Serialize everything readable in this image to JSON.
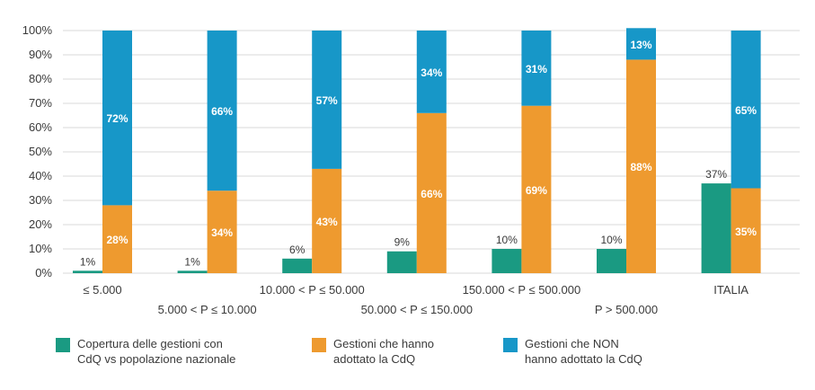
{
  "chart_data": {
    "type": "bar",
    "stacked_series": [
      "Gestioni che hanno adottato la CdQ",
      "Gestioni che NON hanno adottato la CdQ"
    ],
    "categories": [
      "≤ 5.000",
      "5.000 < P ≤ 10.000",
      "10.000 < P ≤ 50.000",
      "50.000 < P ≤ 150.000",
      "150.000 < P ≤ 500.000",
      "P > 500.000",
      "ITALIA"
    ],
    "series": [
      {
        "name": "Copertura delle gestioni con CdQ vs popolazione nazionale",
        "color": "#1a9a82",
        "values": [
          1,
          1,
          6,
          9,
          10,
          10,
          37
        ],
        "labels": [
          "1%",
          "1%",
          "6%",
          "9%",
          "10%",
          "10%",
          "37%"
        ]
      },
      {
        "name": "Gestioni che hanno adottato la CdQ",
        "color": "#ee9a2f",
        "values": [
          28,
          34,
          43,
          66,
          69,
          88,
          35
        ],
        "labels": [
          "28%",
          "34%",
          "43%",
          "66%",
          "69%",
          "88%",
          "35%"
        ]
      },
      {
        "name": "Gestioni che NON hanno adottato la CdQ",
        "color": "#1797c8",
        "values": [
          72,
          66,
          57,
          34,
          31,
          13,
          65
        ],
        "labels": [
          "72%",
          "66%",
          "57%",
          "34%",
          "31%",
          "13%",
          "65%"
        ]
      }
    ],
    "ylim": [
      0,
      100
    ],
    "yticks": [
      "0%",
      "10%",
      "20%",
      "30%",
      "40%",
      "50%",
      "60%",
      "70%",
      "80%",
      "90%",
      "100%"
    ],
    "grid": true,
    "legend_position": "bottom"
  },
  "legend": {
    "items": [
      {
        "lines": [
          "Copertura delle gestioni con",
          "CdQ vs popolazione nazionale"
        ],
        "color": "#1a9a82"
      },
      {
        "lines": [
          "Gestioni che hanno",
          "adottato la CdQ"
        ],
        "color": "#ee9a2f"
      },
      {
        "lines": [
          "Gestioni che NON",
          "hanno adottato la CdQ"
        ],
        "color": "#1797c8"
      }
    ]
  }
}
